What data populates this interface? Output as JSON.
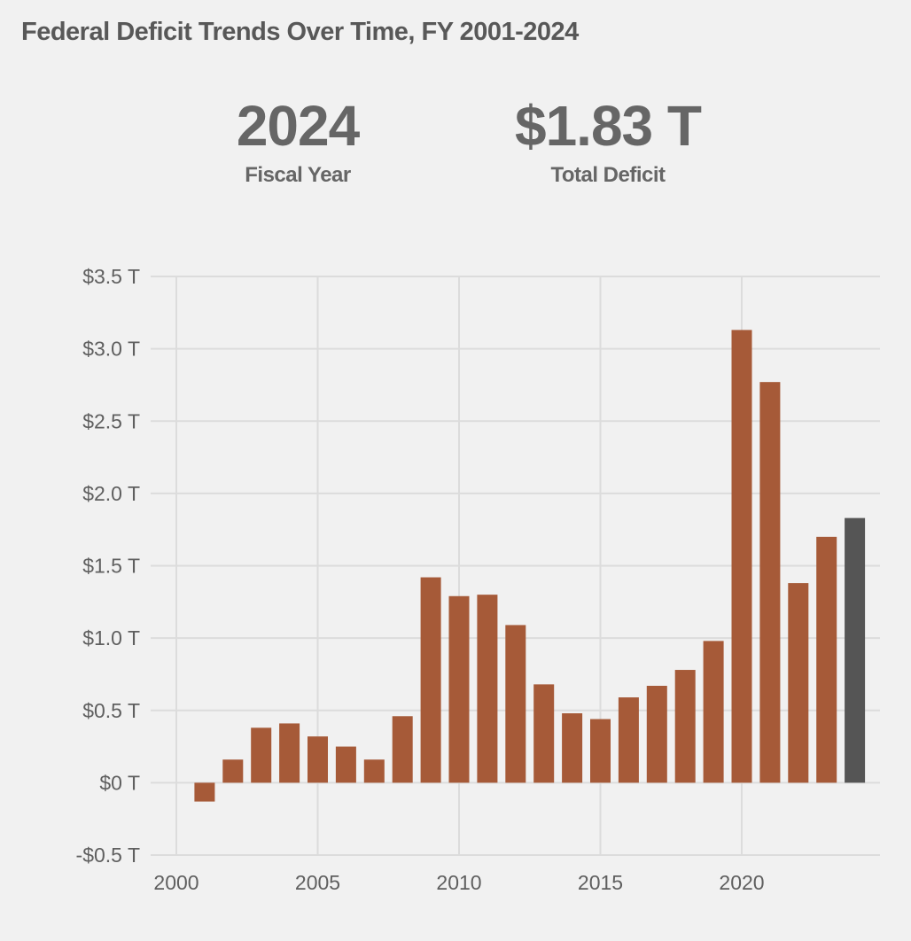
{
  "title": "Federal Deficit Trends Over Time, FY 2001-2024",
  "kpis": {
    "year": {
      "value": "2024",
      "label": "Fiscal Year"
    },
    "deficit": {
      "value": "$1.83 T",
      "label": "Total Deficit"
    }
  },
  "colors": {
    "bar": "#a65a38",
    "highlight": "#555555",
    "grid": "#dcdcdc",
    "background": "#f1f1f1"
  },
  "chart_data": {
    "type": "bar",
    "title": "Federal Deficit Trends Over Time, FY 2001-2024",
    "xlabel": "",
    "ylabel": "",
    "x": [
      2001,
      2002,
      2003,
      2004,
      2005,
      2006,
      2007,
      2008,
      2009,
      2010,
      2011,
      2012,
      2013,
      2014,
      2015,
      2016,
      2017,
      2018,
      2019,
      2020,
      2021,
      2022,
      2023,
      2024
    ],
    "values": [
      -0.13,
      0.16,
      0.38,
      0.41,
      0.32,
      0.25,
      0.16,
      0.46,
      1.42,
      1.29,
      1.3,
      1.09,
      0.68,
      0.48,
      0.44,
      0.59,
      0.67,
      0.78,
      0.98,
      3.13,
      2.77,
      1.38,
      1.7,
      1.83
    ],
    "unit": "trillions USD",
    "highlighted": 2024,
    "xlim": [
      2000,
      2024.8
    ],
    "ylim": [
      -0.5,
      3.5
    ],
    "xticks": [
      2000,
      2005,
      2010,
      2015,
      2020
    ],
    "xtick_labels": [
      "2000",
      "2005",
      "2010",
      "2015",
      "2020"
    ],
    "yticks": [
      -0.5,
      0,
      0.5,
      1.0,
      1.5,
      2.0,
      2.5,
      3.0,
      3.5
    ],
    "ytick_labels": [
      "-$0.5 T",
      "$0 T",
      "$0.5 T",
      "$1.0 T",
      "$1.5 T",
      "$2.0 T",
      "$2.5 T",
      "$3.0 T",
      "$3.5 T"
    ],
    "grid": true,
    "legend": "none"
  }
}
